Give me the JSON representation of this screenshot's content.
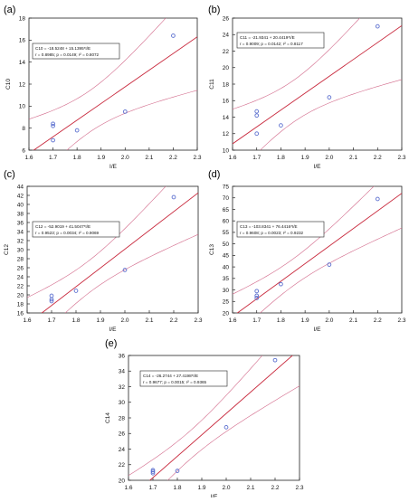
{
  "chart_data": [
    {
      "type": "scatter",
      "panel_label": "(a)",
      "xlabel": "I/E",
      "ylabel": "C10",
      "xlim": [
        1.6,
        2.3
      ],
      "ylim": [
        6,
        18
      ],
      "xticks": [
        "1.6",
        "1.7",
        "1.8",
        "1.9",
        "2.0",
        "2.1",
        "2.2",
        "2.3"
      ],
      "yticks": [
        "6",
        "8",
        "10",
        "12",
        "14",
        "16",
        "18"
      ],
      "points": [
        [
          1.7,
          6.9
        ],
        [
          1.7,
          8.2
        ],
        [
          1.7,
          8.4
        ],
        [
          1.8,
          7.8
        ],
        [
          2.0,
          9.5
        ],
        [
          2.2,
          16.4
        ]
      ],
      "fit": {
        "intercept": -18.5248,
        "slope": 15.1395
      },
      "legend_lines": [
        "C10 = -18.5248 + 15.1395*I/E",
        "r = 0.8985; p = 0.0149; r² = 0.8072"
      ],
      "grid": false
    },
    {
      "type": "scatter",
      "panel_label": "(b)",
      "xlabel": "I/E",
      "ylabel": "C11",
      "xlim": [
        1.6,
        2.3
      ],
      "ylim": [
        10,
        26
      ],
      "xticks": [
        "1.6",
        "1.7",
        "1.8",
        "1.9",
        "2.0",
        "2.1",
        "2.2",
        "2.3"
      ],
      "yticks": [
        "10",
        "12",
        "14",
        "16",
        "18",
        "20",
        "22",
        "24",
        "26"
      ],
      "points": [
        [
          1.7,
          12.0
        ],
        [
          1.7,
          14.2
        ],
        [
          1.7,
          14.7
        ],
        [
          1.8,
          13.0
        ],
        [
          2.0,
          16.4
        ],
        [
          2.2,
          25.0
        ]
      ],
      "fit": {
        "intercept": -21.9341,
        "slope": 20.4419
      },
      "legend_lines": [
        "C11 = -21.9341 + 20.4419*I/E",
        "r = 0.9009; p = 0.0142; r² = 0.8117"
      ],
      "grid": false
    },
    {
      "type": "scatter",
      "panel_label": "(c)",
      "xlabel": "I/E",
      "ylabel": "C12",
      "xlim": [
        1.6,
        2.3
      ],
      "ylim": [
        16,
        44
      ],
      "xticks": [
        "1.6",
        "1.7",
        "1.8",
        "1.9",
        "2.0",
        "2.1",
        "2.2",
        "2.3"
      ],
      "yticks": [
        "16",
        "18",
        "20",
        "22",
        "24",
        "26",
        "28",
        "30",
        "32",
        "34",
        "36",
        "38",
        "40",
        "42",
        "44"
      ],
      "points": [
        [
          1.7,
          18.6
        ],
        [
          1.7,
          19.0
        ],
        [
          1.7,
          19.8
        ],
        [
          1.8,
          20.9
        ],
        [
          2.0,
          25.5
        ],
        [
          2.2,
          41.6
        ]
      ],
      "fit": {
        "intercept": -52.9019,
        "slope": 41.5047
      },
      "legend_lines": [
        "C12 = -52.9019 + 41.5047*I/E",
        "r = 0.9523; p = 0.0034; r² = 0.9069"
      ],
      "grid": false
    },
    {
      "type": "scatter",
      "panel_label": "(d)",
      "xlabel": "I/E",
      "ylabel": "C13",
      "xlim": [
        1.6,
        2.3
      ],
      "ylim": [
        20,
        75
      ],
      "xticks": [
        "1.6",
        "1.7",
        "1.8",
        "1.9",
        "2.0",
        "2.1",
        "2.2",
        "2.3"
      ],
      "yticks": [
        "20",
        "25",
        "30",
        "35",
        "40",
        "45",
        "50",
        "55",
        "60",
        "65",
        "70",
        "75"
      ],
      "points": [
        [
          1.7,
          26.5
        ],
        [
          1.7,
          27.5
        ],
        [
          1.7,
          29.5
        ],
        [
          1.8,
          32.5
        ],
        [
          2.0,
          41.0
        ],
        [
          2.2,
          69.5
        ]
      ],
      "fit": {
        "intercept": -103.8341,
        "slope": 76.4416
      },
      "legend_lines": [
        "C13 = -103.8341 + 76.4416*I/E",
        "r = 0.9608; p = 0.0023; r² = 0.9232"
      ],
      "grid": false
    },
    {
      "type": "scatter",
      "panel_label": "(e)",
      "xlabel": "I/E",
      "ylabel": "C14",
      "xlim": [
        1.6,
        2.3
      ],
      "ylim": [
        20,
        36
      ],
      "xticks": [
        "1.6",
        "1.7",
        "1.8",
        "1.9",
        "2.0",
        "2.1",
        "2.2",
        "2.3"
      ],
      "yticks": [
        "20",
        "22",
        "24",
        "26",
        "28",
        "30",
        "32",
        "34",
        "36"
      ],
      "points": [
        [
          1.7,
          20.9
        ],
        [
          1.7,
          21.1
        ],
        [
          1.7,
          21.3
        ],
        [
          1.8,
          21.2
        ],
        [
          2.0,
          26.8
        ],
        [
          2.2,
          35.4
        ]
      ],
      "fit": {
        "intercept": -26.2744,
        "slope": 27.4198
      },
      "legend_lines": [
        "C14 = -26.2744 + 27.4198*I/E",
        "r = 0.9677; p = 0.0015; r² = 0.9365"
      ],
      "grid": false
    }
  ],
  "style": {
    "point_color": "#5b6fcf",
    "fit_color": "#c8283c",
    "band_color": "#d2698a",
    "axis_color": "#222222"
  }
}
